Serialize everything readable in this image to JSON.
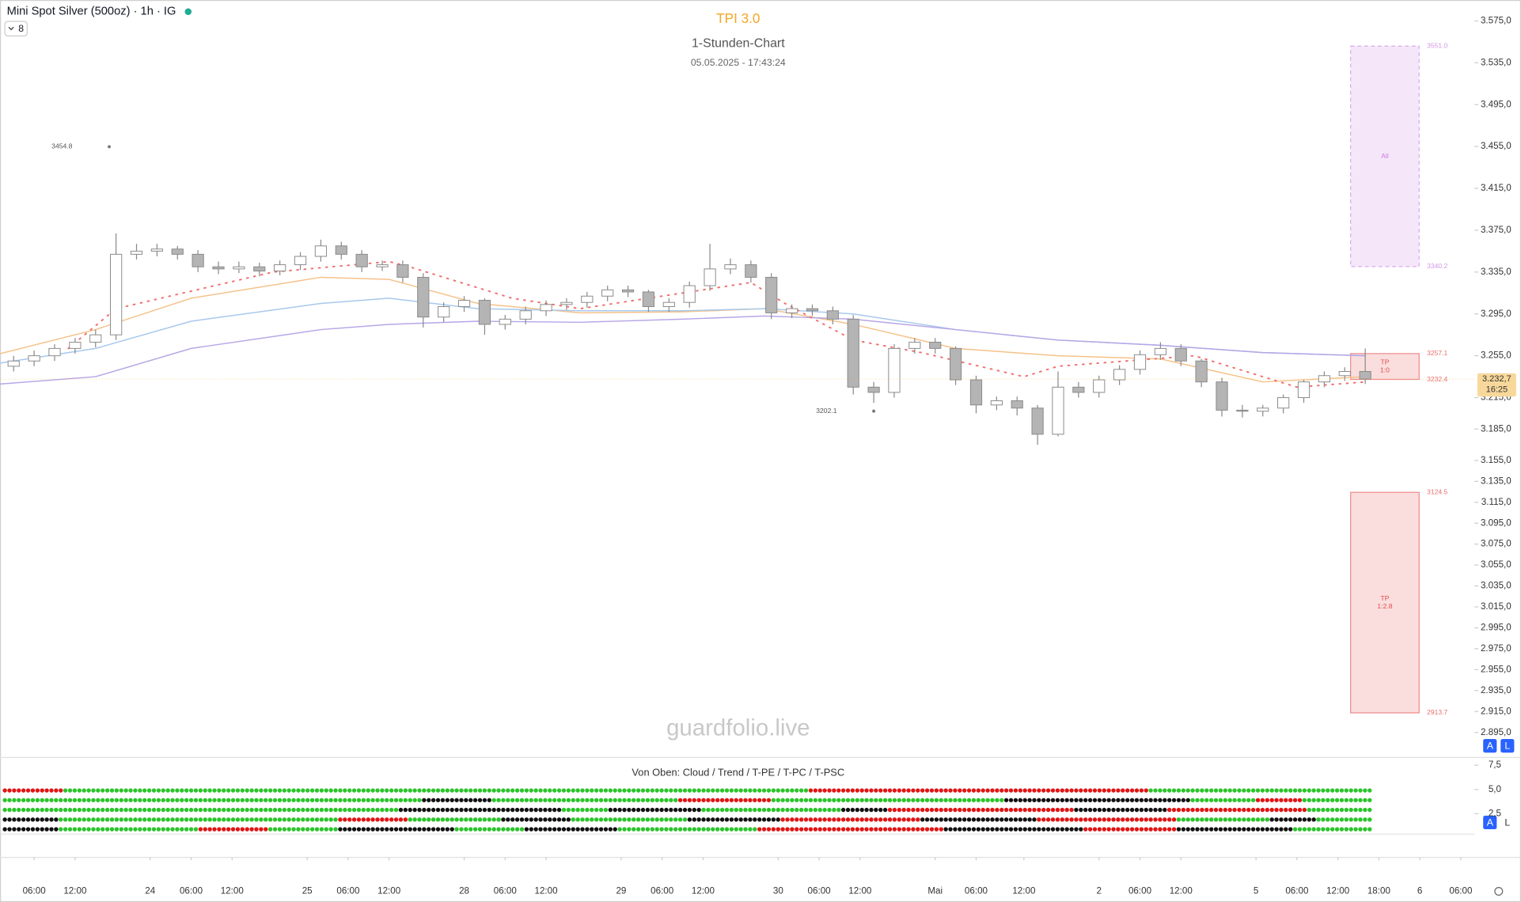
{
  "header": {
    "symbol": "Mini Spot Silver (500oz) · 1h · IG",
    "indicator_count": "8",
    "watermark": "guardfolio.live",
    "buttons": [
      "A",
      "L"
    ]
  },
  "chart_data": {
    "type": "candlestick",
    "title": "TPI 3.0",
    "subtitle": "1-Stunden-Chart",
    "timestamp": "05.05.2025 - 17:43:24",
    "xlim": [
      0,
      216
    ],
    "ylim": [
      2872,
      3595
    ],
    "yticks": [
      {
        "value": 3575,
        "label": "3.575,0"
      },
      {
        "value": 3535,
        "label": "3.535,0"
      },
      {
        "value": 3495,
        "label": "3.495,0"
      },
      {
        "value": 3455,
        "label": "3.455,0"
      },
      {
        "value": 3415,
        "label": "3.415,0"
      },
      {
        "value": 3375,
        "label": "3.375,0"
      },
      {
        "value": 3335,
        "label": "3.335,0"
      },
      {
        "value": 3295,
        "label": "3.295,0"
      },
      {
        "value": 3255,
        "label": "3.255,0"
      },
      {
        "value": 3215,
        "label": "3.215,0"
      },
      {
        "value": 3185,
        "label": "3.185,0"
      },
      {
        "value": 3155,
        "label": "3.155,0"
      },
      {
        "value": 3135,
        "label": "3.135,0"
      },
      {
        "value": 3115,
        "label": "3.115,0"
      },
      {
        "value": 3095,
        "label": "3.095,0"
      },
      {
        "value": 3075,
        "label": "3.075,0"
      },
      {
        "value": 3055,
        "label": "3.055,0"
      },
      {
        "value": 3035,
        "label": "3.035,0"
      },
      {
        "value": 3015,
        "label": "3.015,0"
      },
      {
        "value": 2995,
        "label": "2.995,0"
      },
      {
        "value": 2975,
        "label": "2.975,0"
      },
      {
        "value": 2955,
        "label": "2.955,0"
      },
      {
        "value": 2935,
        "label": "2.935,0"
      },
      {
        "value": 2915,
        "label": "2.915,0"
      },
      {
        "value": 2895,
        "label": "2.895,0"
      }
    ],
    "xticks": [
      {
        "value": 5,
        "label": "06:00"
      },
      {
        "value": 11,
        "label": "12:00"
      },
      {
        "value": 22,
        "label": "24"
      },
      {
        "value": 28,
        "label": "06:00"
      },
      {
        "value": 34,
        "label": "12:00"
      },
      {
        "value": 45,
        "label": "25"
      },
      {
        "value": 51,
        "label": "06:00"
      },
      {
        "value": 57,
        "label": "12:00"
      },
      {
        "value": 68,
        "label": "28"
      },
      {
        "value": 74,
        "label": "06:00"
      },
      {
        "value": 80,
        "label": "12:00"
      },
      {
        "value": 91,
        "label": "29"
      },
      {
        "value": 97,
        "label": "06:00"
      },
      {
        "value": 103,
        "label": "12:00"
      },
      {
        "value": 114,
        "label": "30"
      },
      {
        "value": 120,
        "label": "06:00"
      },
      {
        "value": 126,
        "label": "12:00"
      },
      {
        "value": 137,
        "label": "Mai"
      },
      {
        "value": 143,
        "label": "06:00"
      },
      {
        "value": 150,
        "label": "12:00"
      },
      {
        "value": 161,
        "label": "2"
      },
      {
        "value": 167,
        "label": "06:00"
      },
      {
        "value": 173,
        "label": "12:00"
      },
      {
        "value": 184,
        "label": "5"
      },
      {
        "value": 190,
        "label": "06:00"
      },
      {
        "value": 196,
        "label": "12:00"
      },
      {
        "value": 202,
        "label": "18:00"
      },
      {
        "value": 208,
        "label": "6"
      },
      {
        "value": 214,
        "label": "06:00"
      }
    ],
    "x": [
      2,
      5,
      8,
      11,
      14,
      17,
      20,
      23,
      26,
      29,
      32,
      35,
      38,
      41,
      44,
      47,
      50,
      53,
      56,
      59,
      62,
      65,
      68,
      71,
      74,
      77,
      80,
      83,
      86,
      89,
      92,
      95,
      98,
      101,
      104,
      107,
      110,
      113,
      116,
      119,
      122,
      125,
      128,
      131,
      134,
      137,
      140,
      143,
      146,
      149,
      152,
      155,
      158,
      161,
      164,
      167,
      170,
      173,
      176,
      179,
      182,
      185,
      188,
      191,
      194,
      197,
      200
    ],
    "open": [
      3245,
      3250,
      3255,
      3262,
      3268,
      3275,
      3352,
      3355,
      3357,
      3352,
      3340,
      3338,
      3340,
      3336,
      3342,
      3350,
      3360,
      3352,
      3340,
      3342,
      3330,
      3292,
      3302,
      3308,
      3285,
      3290,
      3298,
      3304,
      3306,
      3312,
      3318,
      3316,
      3302,
      3306,
      3322,
      3338,
      3342,
      3330,
      3296,
      3300,
      3298,
      3290,
      3225,
      3220,
      3262,
      3268,
      3262,
      3232,
      3208,
      3212,
      3205,
      3180,
      3225,
      3220,
      3232,
      3242,
      3256,
      3262,
      3250,
      3230,
      3203,
      3202,
      3205,
      3215,
      3230,
      3236,
      3240
    ],
    "high": [
      3255,
      3260,
      3266,
      3272,
      3280,
      3372,
      3362,
      3362,
      3360,
      3356,
      3345,
      3345,
      3344,
      3346,
      3354,
      3366,
      3364,
      3356,
      3346,
      3346,
      3334,
      3306,
      3312,
      3310,
      3294,
      3302,
      3308,
      3310,
      3316,
      3322,
      3322,
      3318,
      3310,
      3326,
      3362,
      3348,
      3346,
      3334,
      3304,
      3304,
      3302,
      3294,
      3230,
      3266,
      3272,
      3272,
      3264,
      3236,
      3216,
      3216,
      3208,
      3240,
      3230,
      3236,
      3246,
      3260,
      3268,
      3266,
      3252,
      3234,
      3208,
      3208,
      3218,
      3232,
      3240,
      3244,
      3262
    ],
    "low": [
      3240,
      3245,
      3250,
      3257,
      3263,
      3270,
      3347,
      3350,
      3347,
      3335,
      3333,
      3334,
      3331,
      3332,
      3337,
      3345,
      3347,
      3335,
      3336,
      3325,
      3282,
      3287,
      3297,
      3275,
      3280,
      3285,
      3293,
      3299,
      3301,
      3307,
      3311,
      3297,
      3297,
      3301,
      3317,
      3333,
      3325,
      3290,
      3291,
      3293,
      3285,
      3218,
      3210,
      3215,
      3257,
      3257,
      3227,
      3200,
      3203,
      3198,
      3170,
      3178,
      3215,
      3215,
      3227,
      3237,
      3251,
      3245,
      3225,
      3197,
      3196,
      3197,
      3200,
      3210,
      3225,
      3231,
      3228
    ],
    "close": [
      3250,
      3255,
      3262,
      3268,
      3275,
      3352,
      3355,
      3357,
      3352,
      3340,
      3338,
      3340,
      3336,
      3342,
      3350,
      3360,
      3352,
      3340,
      3342,
      3330,
      3292,
      3302,
      3308,
      3285,
      3290,
      3298,
      3304,
      3306,
      3312,
      3318,
      3316,
      3302,
      3306,
      3322,
      3338,
      3342,
      3330,
      3296,
      3300,
      3298,
      3290,
      3225,
      3220,
      3262,
      3268,
      3262,
      3232,
      3208,
      3212,
      3205,
      3180,
      3225,
      3220,
      3232,
      3242,
      3256,
      3262,
      3250,
      3230,
      3203,
      3202,
      3205,
      3215,
      3230,
      3236,
      3240,
      3232.7
    ],
    "up_color": "#ffffff",
    "down_color": "#b4b4b4",
    "wick_color": "#8a8a8a",
    "lines": [
      {
        "color": "#f5c28a",
        "dash": false,
        "x": [
          0,
          14,
          28,
          47,
          57,
          70,
          85,
          100,
          112,
          125,
          140,
          155,
          170,
          185,
          200
        ],
        "values": [
          3257,
          3280,
          3310,
          3330,
          3328,
          3305,
          3296,
          3297,
          3300,
          3285,
          3262,
          3255,
          3252,
          3230,
          3235
        ]
      },
      {
        "color": "#a8c8ec",
        "dash": false,
        "x": [
          0,
          14,
          28,
          47,
          57,
          70,
          85,
          100,
          112,
          125,
          140,
          155,
          170,
          185,
          200
        ],
        "values": [
          3248,
          3262,
          3288,
          3305,
          3310,
          3300,
          3298,
          3298,
          3300,
          3295,
          3280,
          3270,
          3265,
          3258,
          3255
        ]
      },
      {
        "color": "#b6a6e6",
        "dash": false,
        "x": [
          0,
          14,
          28,
          47,
          57,
          70,
          85,
          100,
          112,
          125,
          140,
          155,
          170,
          185,
          200
        ],
        "values": [
          3228,
          3235,
          3262,
          3280,
          3285,
          3288,
          3287,
          3290,
          3293,
          3290,
          3280,
          3270,
          3265,
          3258,
          3255
        ]
      },
      {
        "color": "#f07070",
        "dash": true,
        "x": [
          10,
          17,
          40,
          57,
          60,
          75,
          85,
          110,
          115,
          125,
          135,
          150,
          155,
          175,
          190,
          200
        ],
        "values": [
          3262,
          3300,
          3335,
          3345,
          3340,
          3310,
          3300,
          3325,
          3305,
          3270,
          3258,
          3235,
          3245,
          3255,
          3225,
          3230
        ]
      }
    ],
    "annotations": [
      {
        "x": 16,
        "value": 3454.8,
        "label": "3454.8"
      },
      {
        "x": 128,
        "value": 3202.1,
        "label": "3202.1"
      }
    ],
    "zones": [
      {
        "label_lines": [
          "All"
        ],
        "top": {
          "value": 3551.0,
          "label": "3551.0"
        },
        "bottom": {
          "value": 3340.2,
          "label": "3340.2"
        },
        "color": "#c77be0"
      },
      {
        "label_lines": [
          "TP",
          "1:0"
        ],
        "top": {
          "value": 3257.1,
          "label": "3257.1"
        },
        "bottom": {
          "value": 3232.4,
          "label": "3232.4"
        },
        "color": "#e34a4a"
      },
      {
        "label_lines": [
          "TP",
          "1:2.8"
        ],
        "top": {
          "value": 3124.5,
          "label": "3124.5"
        },
        "bottom": {
          "value": 2913.7,
          "label": "2913.7"
        },
        "color": "#e34a4a"
      }
    ],
    "last_price": {
      "value": 3232.7,
      "label": "3.232,7"
    },
    "countdown": "16:25",
    "indicator": {
      "title": "Von Oben: Cloud / Trend / T-PE / T-PC / T-PSC",
      "ylim": [
        0.4,
        8.3
      ],
      "yticks": [
        {
          "value": 7.5,
          "label": "7,5"
        },
        {
          "value": 5.0,
          "label": "5,0"
        },
        {
          "value": 2.5,
          "label": "2,5"
        }
      ],
      "palette": {
        "r": "#e01515",
        "g": "#2bc42b",
        "k": "#111111"
      },
      "rows": [
        [
          [
            "r",
            13
          ],
          [
            "g",
            160
          ],
          [
            "r",
            73
          ],
          [
            "g",
            48
          ]
        ],
        [
          [
            "g",
            90
          ],
          [
            "k",
            15
          ],
          [
            "g",
            40
          ],
          [
            "r",
            20
          ],
          [
            "g",
            50
          ],
          [
            "k",
            40
          ],
          [
            "g",
            14
          ],
          [
            "r",
            10
          ],
          [
            "g",
            15
          ]
        ],
        [
          [
            "g",
            85
          ],
          [
            "k",
            35
          ],
          [
            "g",
            10
          ],
          [
            "k",
            20
          ],
          [
            "g",
            30
          ],
          [
            "k",
            10
          ],
          [
            "r",
            40
          ],
          [
            "k",
            20
          ],
          [
            "r",
            30
          ],
          [
            "g",
            14
          ]
        ],
        [
          [
            "k",
            12
          ],
          [
            "g",
            60
          ],
          [
            "r",
            15
          ],
          [
            "g",
            20
          ],
          [
            "k",
            15
          ],
          [
            "g",
            25
          ],
          [
            "k",
            20
          ],
          [
            "r",
            30
          ],
          [
            "k",
            25
          ],
          [
            "r",
            30
          ],
          [
            "g",
            20
          ],
          [
            "k",
            10
          ],
          [
            "g",
            12
          ]
        ],
        [
          [
            "k",
            12
          ],
          [
            "g",
            30
          ],
          [
            "r",
            15
          ],
          [
            "g",
            15
          ],
          [
            "k",
            25
          ],
          [
            "g",
            15
          ],
          [
            "k",
            20
          ],
          [
            "g",
            30
          ],
          [
            "r",
            40
          ],
          [
            "k",
            30
          ],
          [
            "r",
            20
          ],
          [
            "k",
            25
          ],
          [
            "g",
            17
          ]
        ]
      ]
    }
  }
}
